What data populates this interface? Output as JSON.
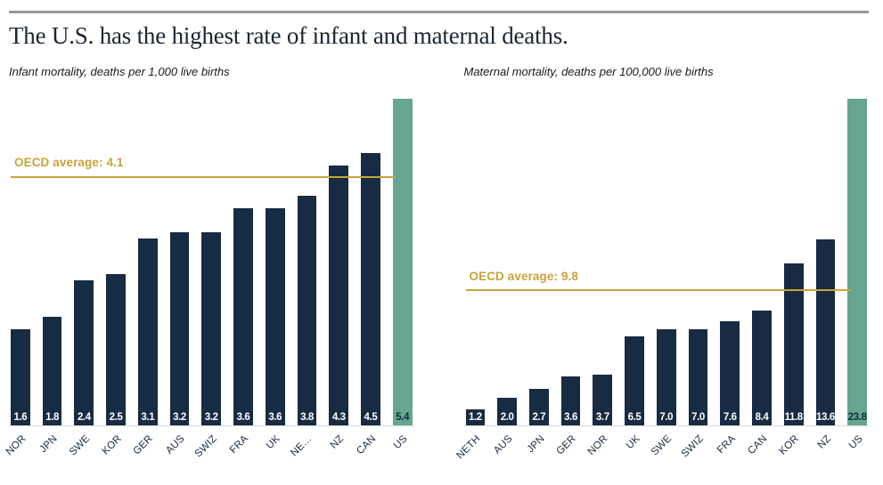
{
  "page": {
    "title": "The U.S. has the highest rate of infant and maternal deaths."
  },
  "colors": {
    "bar_color": "#172b42",
    "highlight_color": "#66a690",
    "average_color": "#c8a43c",
    "baseline_color": "#d9d9d9",
    "rule_color": "#999999",
    "title_color": "#1c2633",
    "text_color": "#1a1a1a"
  },
  "chart_data": [
    {
      "type": "bar",
      "title": "Infant mortality, deaths per 1,000 live births",
      "categories": [
        "NOR",
        "JPN",
        "SWE",
        "KOR",
        "GER",
        "AUS",
        "SWIZ",
        "FRA",
        "UK",
        "NE…",
        "NZ",
        "CAN",
        "US"
      ],
      "values": [
        1.6,
        1.8,
        2.4,
        2.5,
        3.1,
        3.2,
        3.2,
        3.6,
        3.6,
        3.8,
        4.3,
        4.5,
        5.4
      ],
      "highlight_category": "US",
      "average_label": "OECD average: 4.1",
      "average_value": 4.1,
      "ylim": [
        0,
        5.4
      ],
      "grid": false,
      "legend": "none",
      "value_label_position": "inside-bottom"
    },
    {
      "type": "bar",
      "title": "Maternal mortality, deaths per 100,000 live births",
      "categories": [
        "NETH",
        "AUS",
        "JPN",
        "GER",
        "NOR",
        "UK",
        "SWE",
        "SWIZ",
        "FRA",
        "CAN",
        "KOR",
        "NZ",
        "US"
      ],
      "values": [
        1.2,
        2.0,
        2.7,
        3.6,
        3.7,
        6.5,
        7.0,
        7.0,
        7.6,
        8.4,
        11.8,
        13.6,
        23.8
      ],
      "highlight_category": "US",
      "average_label": "OECD average: 9.8",
      "average_value": 9.8,
      "ylim": [
        0,
        23.8
      ],
      "grid": false,
      "legend": "none",
      "value_label_position": "inside-bottom"
    }
  ]
}
